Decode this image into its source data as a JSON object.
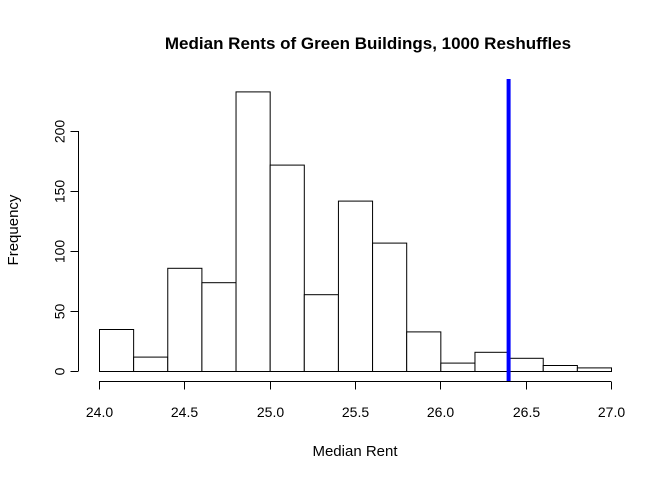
{
  "chart_data": {
    "type": "histogram",
    "title": "Median Rents of Green Buildings, 1000 Reshuffles",
    "xlabel": "Median Rent",
    "ylabel": "Frequency",
    "bin_edges": [
      24.0,
      24.2,
      24.4,
      24.6,
      24.8,
      25.0,
      25.2,
      25.4,
      25.6,
      25.8,
      26.0,
      26.2,
      26.4,
      26.6,
      26.8,
      27.0
    ],
    "counts": [
      35,
      12,
      86,
      74,
      233,
      172,
      64,
      142,
      107,
      33,
      7,
      16,
      11,
      5,
      3
    ],
    "xlim": [
      24.0,
      27.0
    ],
    "ylim": [
      0,
      240
    ],
    "x_ticks": [
      24.0,
      24.5,
      25.0,
      25.5,
      26.0,
      26.5,
      27.0
    ],
    "x_tick_labels": [
      "24.0",
      "24.5",
      "25.0",
      "25.5",
      "26.0",
      "26.5",
      "27.0"
    ],
    "y_ticks": [
      0,
      50,
      100,
      150,
      200
    ],
    "y_tick_labels": [
      "0",
      "50",
      "100",
      "150",
      "200"
    ],
    "reference_line": {
      "x": 26.4,
      "color": "#0000ff"
    },
    "grid": false
  }
}
